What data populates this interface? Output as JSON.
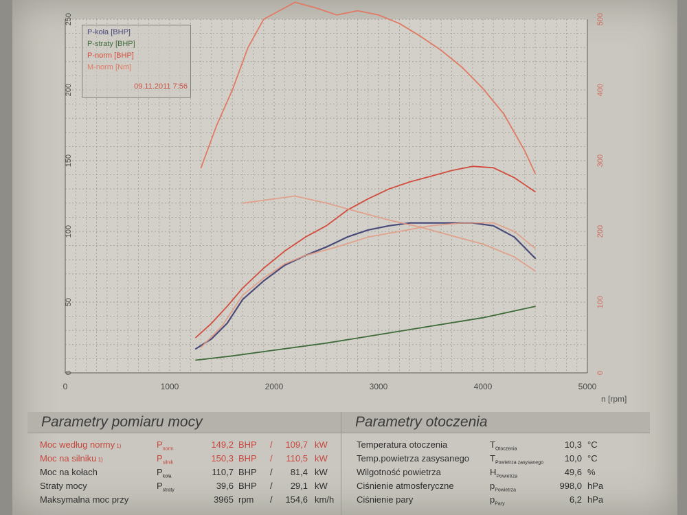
{
  "chart_data": {
    "type": "line",
    "x_axis": {
      "label": "n [rpm]",
      "range": [
        0,
        5000
      ],
      "ticks": [
        "0",
        "1000",
        "2000",
        "3000",
        "4000",
        "5000"
      ]
    },
    "y_left": {
      "range": [
        0,
        250
      ],
      "ticks": [
        "0",
        "50",
        "100",
        "150",
        "200",
        "250"
      ]
    },
    "y_right": {
      "range": [
        0,
        500
      ],
      "ticks": [
        "0",
        "100",
        "200",
        "300",
        "400",
        "500"
      ]
    },
    "grid": true,
    "legend_position": "top-left",
    "legend": [
      "P-koła [BHP]",
      "P-straty [BHP]",
      "P-norm [BHP]",
      "M-norm [Nm]"
    ],
    "legend_colors": [
      "#4a4a7a",
      "#3f6b3a",
      "#d24c3e",
      "#e07a64"
    ],
    "timestamp": "09.11.2011 7:56",
    "series": [
      {
        "name": "P-koła [BHP]",
        "axis": "left",
        "color": "#4a4a7a",
        "points": [
          [
            1250,
            17
          ],
          [
            1400,
            24
          ],
          [
            1550,
            35
          ],
          [
            1700,
            52
          ],
          [
            1900,
            65
          ],
          [
            2100,
            76
          ],
          [
            2300,
            83
          ],
          [
            2500,
            89
          ],
          [
            2700,
            96
          ],
          [
            2900,
            101
          ],
          [
            3100,
            104
          ],
          [
            3300,
            106
          ],
          [
            3500,
            106
          ],
          [
            3700,
            106
          ],
          [
            3900,
            106
          ],
          [
            4100,
            104
          ],
          [
            4300,
            96
          ],
          [
            4500,
            81
          ]
        ]
      },
      {
        "name": "P-straty [BHP]",
        "axis": "left",
        "color": "#3f6b3a",
        "points": [
          [
            1250,
            9
          ],
          [
            1600,
            12
          ],
          [
            2000,
            16
          ],
          [
            2500,
            21
          ],
          [
            3000,
            27
          ],
          [
            3500,
            33
          ],
          [
            4000,
            39
          ],
          [
            4500,
            47
          ]
        ]
      },
      {
        "name": "P-norm [BHP]",
        "axis": "left",
        "color": "#d24c3e",
        "points": [
          [
            1250,
            25
          ],
          [
            1400,
            35
          ],
          [
            1550,
            47
          ],
          [
            1700,
            60
          ],
          [
            1900,
            74
          ],
          [
            2100,
            86
          ],
          [
            2300,
            96
          ],
          [
            2500,
            104
          ],
          [
            2700,
            115
          ],
          [
            2900,
            123
          ],
          [
            3100,
            130
          ],
          [
            3300,
            135
          ],
          [
            3500,
            139
          ],
          [
            3700,
            143
          ],
          [
            3900,
            146
          ],
          [
            4100,
            145
          ],
          [
            4300,
            138
          ],
          [
            4500,
            128
          ]
        ]
      },
      {
        "name": "M-norm [Nm]",
        "axis": "right",
        "color": "#e07a64",
        "points": [
          [
            1300,
            290
          ],
          [
            1450,
            350
          ],
          [
            1600,
            400
          ],
          [
            1750,
            460
          ],
          [
            1900,
            500
          ],
          [
            2100,
            516
          ],
          [
            2200,
            524
          ],
          [
            2400,
            516
          ],
          [
            2600,
            506
          ],
          [
            2800,
            512
          ],
          [
            3000,
            506
          ],
          [
            3200,
            494
          ],
          [
            3400,
            476
          ],
          [
            3600,
            456
          ],
          [
            3800,
            432
          ],
          [
            4000,
            402
          ],
          [
            4200,
            366
          ],
          [
            4400,
            314
          ],
          [
            4500,
            282
          ]
        ]
      },
      {
        "name": "",
        "axis": "left",
        "color": "#e39a82",
        "points": [
          [
            1700,
            120
          ],
          [
            1900,
            122
          ],
          [
            2200,
            125
          ],
          [
            2500,
            120
          ],
          [
            2800,
            114
          ],
          [
            3100,
            108
          ],
          [
            3400,
            103
          ],
          [
            3700,
            97
          ],
          [
            4000,
            91
          ],
          [
            4300,
            82
          ],
          [
            4500,
            72
          ]
        ]
      },
      {
        "name": "",
        "axis": "left",
        "color": "#e39a82",
        "points": [
          [
            1300,
            18
          ],
          [
            1500,
            33
          ],
          [
            1700,
            55
          ],
          [
            1900,
            67
          ],
          [
            2100,
            77
          ],
          [
            2300,
            83
          ],
          [
            2600,
            89
          ],
          [
            2900,
            96
          ],
          [
            3200,
            100
          ],
          [
            3500,
            104
          ],
          [
            3800,
            106
          ],
          [
            4100,
            106
          ],
          [
            4300,
            100
          ],
          [
            4500,
            88
          ]
        ]
      }
    ]
  },
  "tables": {
    "left": {
      "title": "Parametry pomiaru mocy",
      "rows": [
        {
          "label": "Moc według normy",
          "note": "1)",
          "sym": "P",
          "sub": "norm",
          "v1": "149,2",
          "u1": "BHP",
          "sep": "/",
          "v2": "109,7",
          "u2": "kW",
          "red": true
        },
        {
          "label": "Moc na silniku",
          "note": "1)",
          "sym": "P",
          "sub": "silnik",
          "v1": "150,3",
          "u1": "BHP",
          "sep": "/",
          "v2": "110,5",
          "u2": "kW",
          "red": true
        },
        {
          "label": "Moc na kołach",
          "note": "",
          "sym": "P",
          "sub": "koła",
          "v1": "110,7",
          "u1": "BHP",
          "sep": "/",
          "v2": "81,4",
          "u2": "kW",
          "red": false
        },
        {
          "label": "Straty mocy",
          "note": "",
          "sym": "P",
          "sub": "straty",
          "v1": "39,6",
          "u1": "BHP",
          "sep": "/",
          "v2": "29,1",
          "u2": "kW",
          "red": false
        },
        {
          "label": "Maksymalna moc przy",
          "note": "",
          "sym": "",
          "sub": "",
          "v1": "3965",
          "u1": "rpm",
          "sep": "/",
          "v2": "154,6",
          "u2": "km/h",
          "red": false
        }
      ]
    },
    "right": {
      "title": "Parametry otoczenia",
      "rows": [
        {
          "label": "Temperatura otoczenia",
          "sym": "T",
          "sub": "Otoczenia",
          "value": "10,3",
          "unit": "°C"
        },
        {
          "label": "Temp.powietrza zasysanego",
          "sym": "T",
          "sub": "Powietrza zasysanego",
          "value": "10,0",
          "unit": "°C"
        },
        {
          "label": "Wilgotność powietrza",
          "sym": "H",
          "sub": "Powietrza",
          "value": "49,6",
          "unit": "%"
        },
        {
          "label": "Ciśnienie atmosferyczne",
          "sym": "p",
          "sub": "Powietrza",
          "value": "998,0",
          "unit": "hPa"
        },
        {
          "label": "Ciśnienie pary",
          "sym": "p",
          "sub": "Pary",
          "value": "6,2",
          "unit": "hPa"
        }
      ]
    }
  }
}
